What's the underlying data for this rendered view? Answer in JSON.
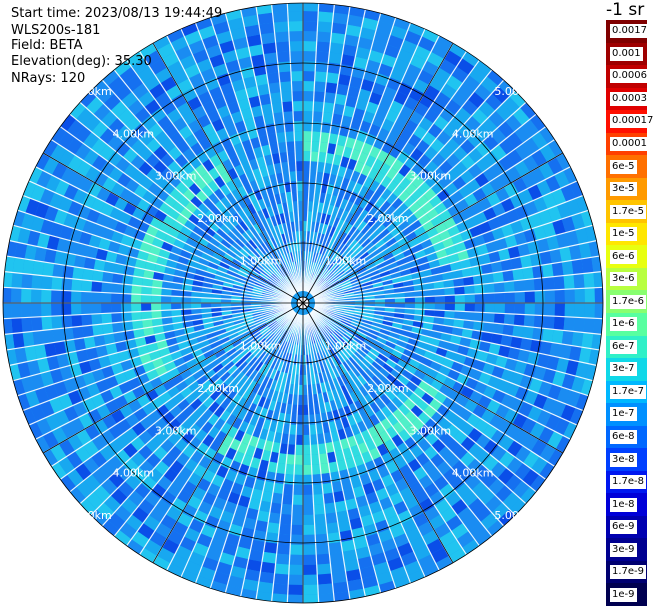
{
  "header": {
    "start_time": "Start time: 2023/08/13 19:44:49",
    "device": "WLS200s-181",
    "field": "Field: BETA",
    "elevation": "Elevation(deg): 35.30",
    "nrays": "NRays: 120"
  },
  "ring_labels": [
    "1.00km",
    "2.00km",
    "3.00km",
    "4.00km",
    "5.00km"
  ],
  "colorbar": {
    "unit": "-1 sr",
    "labels": [
      "0.0017",
      "0.001",
      "0.0006",
      "0.0003",
      "0.00017",
      "0.0001",
      "6e-5",
      "3e-5",
      "1.7e-5",
      "1e-5",
      "6e-6",
      "3e-6",
      "1.7e-6",
      "1e-6",
      "6e-7",
      "3e-7",
      "1.7e-7",
      "1e-7",
      "6e-8",
      "3e-8",
      "1.7e-8",
      "1e-8",
      "6e-9",
      "3e-9",
      "1.7e-9",
      "1e-9"
    ],
    "colors": [
      "#800000",
      "#9e0000",
      "#c00000",
      "#e00000",
      "#ff1000",
      "#ff4000",
      "#ff7000",
      "#ff9a00",
      "#ffc400",
      "#ffe600",
      "#e8ff10",
      "#b8ff40",
      "#88ff70",
      "#58ffa0",
      "#30f0c8",
      "#10d8e8",
      "#00b8ff",
      "#0090ff",
      "#0068ff",
      "#0040ff",
      "#0018f0",
      "#0000d8",
      "#0000b0",
      "#000090",
      "#000070",
      "#000050"
    ]
  }
}
